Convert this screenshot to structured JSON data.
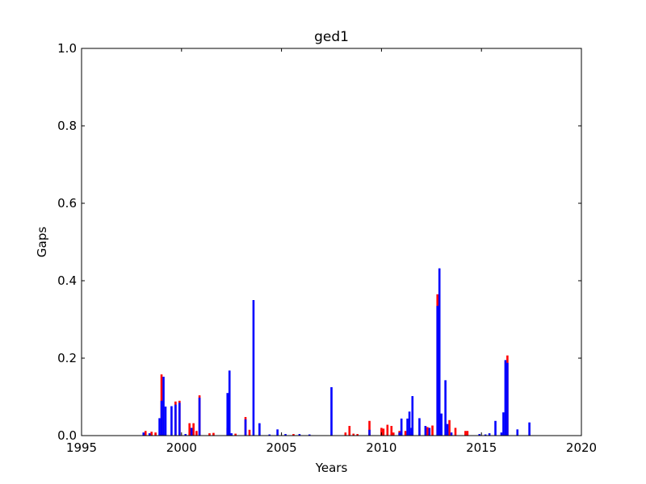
{
  "chart_data": {
    "type": "bar",
    "title": "ged1",
    "xlabel": "Years",
    "ylabel": "Gaps",
    "xlim": [
      1995,
      2020
    ],
    "ylim": [
      0.0,
      1.0
    ],
    "xticks": [
      "1995",
      "2000",
      "2005",
      "2010",
      "2015",
      "2020"
    ],
    "yticks": [
      "0.0",
      "0.2",
      "0.4",
      "0.6",
      "0.8",
      "1.0"
    ],
    "grid": false,
    "series": [
      {
        "color": "#ff0000",
        "points": [
          {
            "x": 1998.2,
            "y": 0.012
          },
          {
            "x": 1998.5,
            "y": 0.01
          },
          {
            "x": 1998.7,
            "y": 0.008
          },
          {
            "x": 1999.0,
            "y": 0.158
          },
          {
            "x": 1999.7,
            "y": 0.088
          },
          {
            "x": 1999.9,
            "y": 0.09
          },
          {
            "x": 2000.4,
            "y": 0.032
          },
          {
            "x": 2000.6,
            "y": 0.032
          },
          {
            "x": 2000.75,
            "y": 0.012
          },
          {
            "x": 2000.9,
            "y": 0.104
          },
          {
            "x": 2001.4,
            "y": 0.006
          },
          {
            "x": 2001.6,
            "y": 0.007
          },
          {
            "x": 2002.3,
            "y": 0.02
          },
          {
            "x": 2002.7,
            "y": 0.005
          },
          {
            "x": 2003.2,
            "y": 0.048
          },
          {
            "x": 2003.4,
            "y": 0.015
          },
          {
            "x": 2005.6,
            "y": 0.004
          },
          {
            "x": 2008.2,
            "y": 0.008
          },
          {
            "x": 2008.4,
            "y": 0.025
          },
          {
            "x": 2008.6,
            "y": 0.005
          },
          {
            "x": 2008.8,
            "y": 0.004
          },
          {
            "x": 2009.4,
            "y": 0.038
          },
          {
            "x": 2010.0,
            "y": 0.02
          },
          {
            "x": 2010.1,
            "y": 0.018
          },
          {
            "x": 2010.3,
            "y": 0.028
          },
          {
            "x": 2010.5,
            "y": 0.025
          },
          {
            "x": 2010.6,
            "y": 0.008
          },
          {
            "x": 2010.9,
            "y": 0.012
          },
          {
            "x": 2011.2,
            "y": 0.012
          },
          {
            "x": 2011.5,
            "y": 0.01
          },
          {
            "x": 2012.3,
            "y": 0.022
          },
          {
            "x": 2012.55,
            "y": 0.026
          },
          {
            "x": 2012.8,
            "y": 0.365
          },
          {
            "x": 2013.4,
            "y": 0.04
          },
          {
            "x": 2013.7,
            "y": 0.02
          },
          {
            "x": 2014.2,
            "y": 0.012
          },
          {
            "x": 2014.3,
            "y": 0.012
          },
          {
            "x": 2016.3,
            "y": 0.207
          }
        ]
      },
      {
        "color": "#0000ff",
        "points": [
          {
            "x": 1998.1,
            "y": 0.008
          },
          {
            "x": 1998.4,
            "y": 0.006
          },
          {
            "x": 1998.9,
            "y": 0.045
          },
          {
            "x": 1999.0,
            "y": 0.09
          },
          {
            "x": 1999.1,
            "y": 0.152
          },
          {
            "x": 1999.2,
            "y": 0.075
          },
          {
            "x": 1999.5,
            "y": 0.076
          },
          {
            "x": 1999.7,
            "y": 0.08
          },
          {
            "x": 1999.9,
            "y": 0.085
          },
          {
            "x": 2000.2,
            "y": 0.004
          },
          {
            "x": 2000.5,
            "y": 0.02
          },
          {
            "x": 2000.9,
            "y": 0.098
          },
          {
            "x": 2002.3,
            "y": 0.11
          },
          {
            "x": 2002.4,
            "y": 0.168
          },
          {
            "x": 2002.5,
            "y": 0.006
          },
          {
            "x": 2003.2,
            "y": 0.042
          },
          {
            "x": 2003.6,
            "y": 0.35
          },
          {
            "x": 2003.9,
            "y": 0.032
          },
          {
            "x": 2004.4,
            "y": 0.003
          },
          {
            "x": 2004.8,
            "y": 0.016
          },
          {
            "x": 2005.2,
            "y": 0.004
          },
          {
            "x": 2005.9,
            "y": 0.004
          },
          {
            "x": 2006.4,
            "y": 0.003
          },
          {
            "x": 2007.5,
            "y": 0.125
          },
          {
            "x": 2009.4,
            "y": 0.015
          },
          {
            "x": 2010.9,
            "y": 0.008
          },
          {
            "x": 2011.0,
            "y": 0.044
          },
          {
            "x": 2011.3,
            "y": 0.044
          },
          {
            "x": 2011.4,
            "y": 0.062
          },
          {
            "x": 2011.5,
            "y": 0.02
          },
          {
            "x": 2011.55,
            "y": 0.102
          },
          {
            "x": 2011.9,
            "y": 0.045
          },
          {
            "x": 2012.2,
            "y": 0.025
          },
          {
            "x": 2012.4,
            "y": 0.02
          },
          {
            "x": 2012.8,
            "y": 0.335
          },
          {
            "x": 2012.9,
            "y": 0.432
          },
          {
            "x": 2013.0,
            "y": 0.057
          },
          {
            "x": 2013.2,
            "y": 0.143
          },
          {
            "x": 2013.3,
            "y": 0.03
          },
          {
            "x": 2013.5,
            "y": 0.008
          },
          {
            "x": 2014.9,
            "y": 0.004
          },
          {
            "x": 2015.2,
            "y": 0.003
          },
          {
            "x": 2015.4,
            "y": 0.006
          },
          {
            "x": 2015.7,
            "y": 0.038
          },
          {
            "x": 2016.0,
            "y": 0.008
          },
          {
            "x": 2016.1,
            "y": 0.06
          },
          {
            "x": 2016.2,
            "y": 0.195
          },
          {
            "x": 2016.3,
            "y": 0.188
          },
          {
            "x": 2016.8,
            "y": 0.016
          },
          {
            "x": 2017.4,
            "y": 0.034
          }
        ]
      }
    ]
  }
}
